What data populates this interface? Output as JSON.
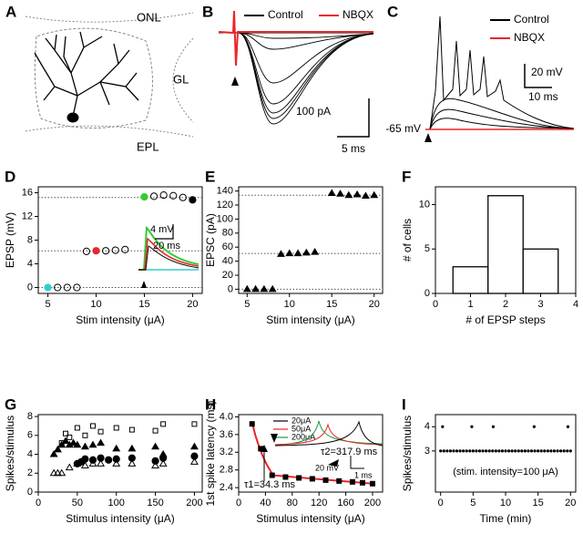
{
  "chart_data": [
    {
      "panel": "A",
      "type": "illustration",
      "labels": [
        "ONL",
        "GL",
        "EPL"
      ]
    },
    {
      "panel": "B",
      "type": "traces",
      "series": [
        {
          "name": "Control",
          "color": "#000000"
        },
        {
          "name": "NBQX",
          "color": "#e8262a"
        }
      ],
      "scale_bars": [
        "100 pA",
        "5 ms"
      ]
    },
    {
      "panel": "C",
      "type": "traces",
      "series": [
        {
          "name": "Control",
          "color": "#000000"
        },
        {
          "name": "NBQX",
          "color": "#e8262a"
        }
      ],
      "scale_bars": [
        "20 mV",
        "10 ms"
      ],
      "baseline_label": "-65 mV"
    },
    {
      "panel": "D",
      "type": "scatter",
      "marker": "circle",
      "x": [
        5,
        6,
        7,
        8,
        9,
        10,
        11,
        12,
        13,
        15,
        16,
        17,
        18,
        19,
        20
      ],
      "values": [
        0,
        0,
        0,
        0,
        6.1,
        6.2,
        6.2,
        6.3,
        6.4,
        15.3,
        15.4,
        15.6,
        15.5,
        15.2,
        14.8
      ],
      "point_fills": [
        "#33cccc",
        "none",
        "none",
        "none",
        "none",
        "#e8262a",
        "none",
        "none",
        "none",
        "#33cc33",
        "none",
        "none",
        "none",
        "none",
        "#000000"
      ],
      "ref_lines": [
        0,
        6.2,
        15.2
      ],
      "xlim": [
        4,
        21
      ],
      "xticks": [
        5,
        10,
        15,
        20
      ],
      "ylim": [
        -1,
        17
      ],
      "yticks": [
        0,
        4,
        8,
        12,
        16
      ],
      "x_label": "Stim intensity (μA)",
      "y_label": "EPSP (mV)",
      "inset_scale_bars": [
        "4 mV",
        "20 ms"
      ]
    },
    {
      "panel": "E",
      "type": "scatter",
      "marker": "triangle",
      "x": [
        5,
        6,
        7,
        8,
        9,
        10,
        11,
        12,
        13,
        15,
        16,
        17,
        18,
        19,
        20
      ],
      "values": [
        0,
        0,
        0,
        0,
        50,
        51,
        51,
        52,
        53,
        137,
        136,
        134,
        135,
        133,
        134
      ],
      "ref_lines": [
        0,
        51,
        134
      ],
      "xlim": [
        4,
        21
      ],
      "xticks": [
        5,
        10,
        15,
        20
      ],
      "ylim": [
        -6,
        146
      ],
      "yticks": [
        0,
        20,
        40,
        60,
        80,
        100,
        120,
        140
      ],
      "x_label": "Stim intensity (μA)",
      "y_label": "EPSC (pA)"
    },
    {
      "panel": "F",
      "type": "histogram",
      "bins": [
        0.5,
        1.5,
        2.5,
        3.5
      ],
      "values": [
        3,
        11,
        5
      ],
      "xlim": [
        0,
        4
      ],
      "xticks": [
        0,
        1,
        2,
        3,
        4
      ],
      "ylim": [
        0,
        12
      ],
      "yticks": [
        0,
        5,
        10
      ],
      "x_label": "# of EPSP steps",
      "y_label": "# of cells"
    },
    {
      "panel": "G",
      "type": "scatter",
      "series": [
        {
          "marker": "square-open",
          "x": [
            30,
            35,
            40,
            50,
            60,
            70,
            80,
            100,
            120,
            150,
            160,
            200
          ],
          "values": [
            5.2,
            6.2,
            5.8,
            6.8,
            6,
            7,
            6.4,
            6.8,
            6.6,
            6.5,
            7.2,
            7.2
          ]
        },
        {
          "marker": "triangle",
          "x": [
            20,
            25,
            30,
            35,
            40,
            45,
            50,
            60,
            70,
            80,
            100,
            120,
            150,
            160,
            200
          ],
          "values": [
            4,
            4.5,
            5,
            5.4,
            5,
            5.2,
            5,
            4.8,
            5,
            5.2,
            4.6,
            4.6,
            4.8,
            4,
            4.8
          ]
        },
        {
          "marker": "circle",
          "x": [
            50,
            55,
            60,
            70,
            80,
            90,
            100,
            120,
            150,
            160,
            200
          ],
          "values": [
            3,
            3.2,
            3.5,
            3.4,
            3.6,
            3.4,
            3.5,
            3.6,
            3.3,
            3.6,
            3.8
          ]
        },
        {
          "marker": "triangle-open",
          "x": [
            20,
            25,
            30,
            40,
            50,
            60,
            70,
            80,
            100,
            120,
            150,
            160,
            200
          ],
          "values": [
            2,
            2,
            2,
            2.6,
            3,
            2.8,
            3,
            3,
            3,
            3,
            2.8,
            3,
            3.2
          ]
        }
      ],
      "xlim": [
        0,
        210
      ],
      "xticks": [
        0,
        50,
        100,
        150,
        200
      ],
      "ylim": [
        0,
        8.2
      ],
      "yticks": [
        0,
        2,
        4,
        6,
        8
      ],
      "x_label": "Stimulus intensity (μA)",
      "y_label": "Spikes/stimulus"
    },
    {
      "panel": "H",
      "type": "scatter",
      "marker": "square",
      "x": [
        20,
        33,
        50,
        70,
        90,
        110,
        130,
        150,
        170,
        185,
        200
      ],
      "values": [
        3.84,
        3.28,
        2.68,
        2.64,
        2.62,
        2.6,
        2.57,
        2.55,
        2.53,
        2.51,
        2.49
      ],
      "fits": [
        {
          "x": [
            20,
            25,
            30,
            35,
            40,
            45,
            50
          ],
          "values": [
            3.88,
            3.58,
            3.35,
            3.15,
            2.98,
            2.84,
            2.72
          ]
        },
        {
          "x": [
            50,
            200
          ],
          "values": [
            2.68,
            2.49
          ]
        }
      ],
      "fit_color": "#e8262a",
      "annotations": [
        "τ1=34.3 ms",
        "τ2=317.9 ms"
      ],
      "inset_series": [
        {
          "name": "20μA",
          "color": "#000000"
        },
        {
          "name": "50μA",
          "color": "#e8262a"
        },
        {
          "name": "200μA",
          "color": "#1a9a3a"
        }
      ],
      "inset_scale_bars": [
        "20 mV",
        "1 ms"
      ],
      "xlim": [
        0,
        215
      ],
      "xticks": [
        0,
        40,
        80,
        120,
        160,
        200
      ],
      "ylim": [
        2.3,
        4.05
      ],
      "yticks": [
        2.4,
        2.8,
        3.2,
        3.6,
        {
          "value": 4,
          "label": "4.0"
        }
      ],
      "x_label": "Stimulus intensity (μA)",
      "y_label": "1st spike latency (ms)"
    },
    {
      "panel": "I",
      "type": "scatter",
      "marker": "dot",
      "x": [
        0,
        0.5,
        1,
        1.5,
        2,
        2.5,
        3,
        3.5,
        4,
        4.5,
        5,
        5.5,
        6,
        6.5,
        7,
        7.5,
        8,
        8.5,
        9,
        9.5,
        10,
        10.5,
        11,
        11.5,
        12,
        12.5,
        13,
        13.5,
        14,
        14.5,
        15,
        15.5,
        16,
        16.5,
        17,
        17.5,
        18,
        18.5,
        19,
        19.5,
        20,
        0.3,
        4.8,
        8.1,
        14.4,
        19.6
      ],
      "values": [
        3,
        3,
        3,
        3,
        3,
        3,
        3,
        3,
        3,
        3,
        3,
        3,
        3,
        3,
        3,
        3,
        3,
        3,
        3,
        3,
        3,
        3,
        3,
        3,
        3,
        3,
        3,
        3,
        3,
        3,
        3,
        3,
        3,
        3,
        3,
        3,
        3,
        3,
        3,
        3,
        3,
        4,
        4,
        4,
        4,
        4
      ],
      "annotations": [
        "(stim. intensity=100 μA)"
      ],
      "xlim": [
        -0.8,
        20.8
      ],
      "xticks": [
        0,
        5,
        10,
        15,
        20
      ],
      "ylim": [
        1.3,
        4.5
      ],
      "yticks": [
        3,
        4
      ],
      "x_label": "Time (min)",
      "y_label": "Spikes/stimulus"
    }
  ]
}
